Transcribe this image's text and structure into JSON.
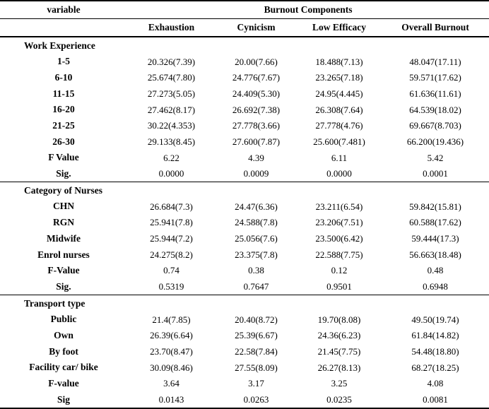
{
  "colors": {
    "text": "#000000",
    "background": "#ffffff",
    "rule": "#000000"
  },
  "table": {
    "header": {
      "variable_label": "variable",
      "group_label": "Burnout Components",
      "columns": [
        "Exhaustion",
        "Cynicism",
        "Low Efficacy",
        "Overall Burnout"
      ]
    },
    "sections": [
      {
        "title": "Work Experience",
        "rows": [
          {
            "label": "1-5",
            "values": [
              "20.326(7.39)",
              "20.00(7.66)",
              "18.488(7.13)",
              "48.047(17.11)"
            ]
          },
          {
            "label": "6-10",
            "values": [
              "25.674(7.80)",
              "24.776(7.67)",
              "23.265(7.18)",
              "59.571(17.62)"
            ]
          },
          {
            "label": "11-15",
            "values": [
              "27.273(5.05)",
              "24.409(5.30)",
              "24.95(4.445)",
              "61.636(11.61)"
            ]
          },
          {
            "label": "16-20",
            "values": [
              "27.462(8.17)",
              "26.692(7.38)",
              "26.308(7.64)",
              "64.539(18.02)"
            ]
          },
          {
            "label": "21-25",
            "values": [
              "30.22(4.353)",
              "27.778(3.66)",
              "27.778(4.76)",
              "69.667(8.703)"
            ]
          },
          {
            "label": "26-30",
            "values": [
              "29.133(8.45)",
              "27.600(7.87)",
              "25.600(7.481)",
              "66.200(19.436)"
            ]
          },
          {
            "label": "F Value",
            "values": [
              "6.22",
              "4.39",
              "6.11",
              "5.42"
            ]
          },
          {
            "label": "Sig.",
            "values": [
              "0.0000",
              "0.0009",
              "0.0000",
              "0.0001"
            ]
          }
        ]
      },
      {
        "title": "Category of Nurses",
        "rows": [
          {
            "label": "CHN",
            "values": [
              "26.684(7.3)",
              "24.47(6.36)",
              "23.211(6.54)",
              "59.842(15.81)"
            ]
          },
          {
            "label": "RGN",
            "values": [
              "25.941(7.8)",
              "24.588(7.8)",
              "23.206(7.51)",
              "60.588(17.62)"
            ]
          },
          {
            "label": "Midwife",
            "values": [
              "25.944(7.2)",
              "25.056(7.6)",
              "23.500(6.42)",
              "59.444(17.3)"
            ]
          },
          {
            "label": "Enrol nurses",
            "values": [
              "24.275(8.2)",
              "23.375(7.8)",
              "22.588(7.75)",
              "56.663(18.48)"
            ]
          },
          {
            "label": "F-Value",
            "values": [
              "0.74",
              "0.38",
              "0.12",
              "0.48"
            ]
          },
          {
            "label": "Sig.",
            "values": [
              "0.5319",
              "0.7647",
              "0.9501",
              "0.6948"
            ]
          }
        ]
      },
      {
        "title": "Transport type",
        "rows": [
          {
            "label": "Public",
            "values": [
              "21.4(7.85)",
              "20.40(8.72)",
              "19.70(8.08)",
              "49.50(19.74)"
            ]
          },
          {
            "label": "Own",
            "values": [
              "26.39(6.64)",
              "25.39(6.67)",
              "24.36(6.23)",
              "61.84(14.82)"
            ]
          },
          {
            "label": "By foot",
            "values": [
              "23.70(8.47)",
              "22.58(7.84)",
              "21.45(7.75)",
              "54.48(18.80)"
            ]
          },
          {
            "label": "Facility car/ bike",
            "values": [
              "30.09(8.46)",
              "27.55(8.09)",
              "26.27(8.13)",
              "68.27(18.25)"
            ]
          },
          {
            "label": "F-value",
            "values": [
              "3.64",
              "3.17",
              "3.25",
              "4.08"
            ]
          },
          {
            "label": "Sig",
            "values": [
              "0.0143",
              "0.0263",
              "0.0235",
              "0.0081"
            ]
          }
        ]
      }
    ]
  }
}
